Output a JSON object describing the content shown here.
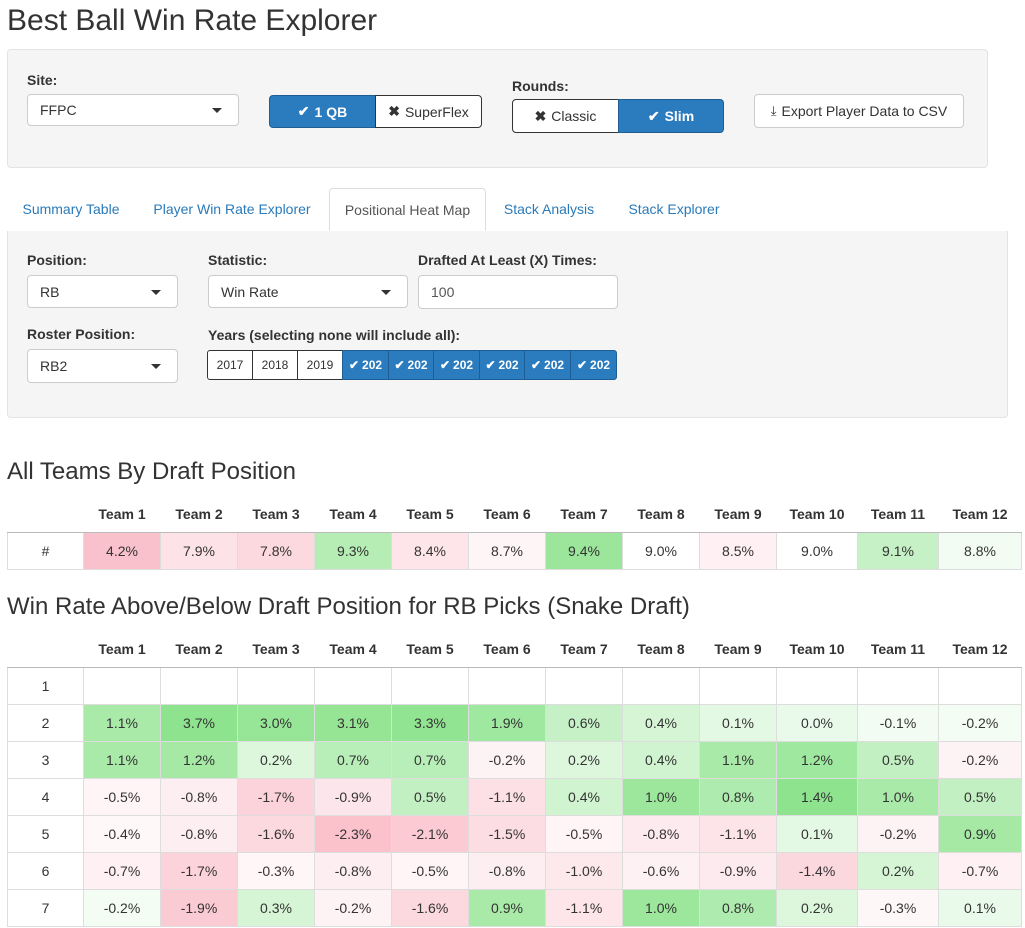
{
  "app": {
    "title": "Best Ball Win Rate Explorer"
  },
  "controls": {
    "site_label": "Site:",
    "site_value": "FFPC",
    "qb_1_label": "1 QB",
    "qb_super_label": "SuperFlex",
    "rounds_label": "Rounds:",
    "rounds_classic_label": "Classic",
    "rounds_slim_label": "Slim",
    "export_label": "Export Player Data to CSV"
  },
  "tabs": [
    "Summary Table",
    "Player Win Rate Explorer",
    "Positional Heat Map",
    "Stack Analysis",
    "Stack Explorer"
  ],
  "active_tab": "Positional Heat Map",
  "filters": {
    "position_label": "Position:",
    "position_value": "RB",
    "statistic_label": "Statistic:",
    "statistic_value": "Win Rate",
    "drafted_label": "Drafted At Least (X) Times:",
    "drafted_value": "100",
    "roster_label": "Roster Position:",
    "roster_value": "RB2",
    "years_label": "Years (selecting none will include all):",
    "years": [
      {
        "label": "2017",
        "selected": false
      },
      {
        "label": "2018",
        "selected": false
      },
      {
        "label": "2019",
        "selected": false
      },
      {
        "label": "202",
        "selected": true
      },
      {
        "label": "202",
        "selected": true
      },
      {
        "label": "202",
        "selected": true
      },
      {
        "label": "202",
        "selected": true
      },
      {
        "label": "202",
        "selected": true
      },
      {
        "label": "202",
        "selected": true
      }
    ]
  },
  "teams_table": {
    "title": "All Teams By Draft Position",
    "headers": [
      "",
      "Team 1",
      "Team 2",
      "Team 3",
      "Team 4",
      "Team 5",
      "Team 6",
      "Team 7",
      "Team 8",
      "Team 9",
      "Team 10",
      "Team 11",
      "Team 12"
    ],
    "row_label": "#",
    "values": [
      4.2,
      7.9,
      7.8,
      9.3,
      8.4,
      8.7,
      9.4,
      9.0,
      8.5,
      9.0,
      9.1,
      8.8
    ],
    "colors": [
      "#f9c1cb",
      "#fde3e8",
      "#fcd9df",
      "#b5edb5",
      "#fde5ea",
      "#fef5f7",
      "#9ce69c",
      "#ffffff",
      "#fff0f3",
      "#ffffff",
      "#c6f1c6",
      "#f3fcf3"
    ]
  },
  "snake_table": {
    "title": "Win Rate Above/Below Draft Position for RB Picks (Snake Draft)",
    "headers": [
      "",
      "Team 1",
      "Team 2",
      "Team 3",
      "Team 4",
      "Team 5",
      "Team 6",
      "Team 7",
      "Team 8",
      "Team 9",
      "Team 10",
      "Team 11",
      "Team 12"
    ],
    "rows": [
      {
        "label": "1",
        "values": [
          "",
          "",
          "",
          "",
          "",
          "",
          "",
          "",
          "",
          "",
          "",
          ""
        ]
      },
      {
        "label": "2",
        "values": [
          "1.1%",
          "3.7%",
          "3.0%",
          "3.1%",
          "3.3%",
          "1.9%",
          "0.6%",
          "0.4%",
          "0.1%",
          "0.0%",
          "-0.1%",
          "-0.2%"
        ]
      },
      {
        "label": "3",
        "values": [
          "1.1%",
          "1.2%",
          "0.2%",
          "0.7%",
          "0.7%",
          "-0.2%",
          "0.2%",
          "0.4%",
          "1.1%",
          "1.2%",
          "0.5%",
          "-0.2%"
        ]
      },
      {
        "label": "4",
        "values": [
          "-0.5%",
          "-0.8%",
          "-1.7%",
          "-0.9%",
          "0.5%",
          "-1.1%",
          "0.4%",
          "1.0%",
          "0.8%",
          "1.4%",
          "1.0%",
          "0.5%"
        ]
      },
      {
        "label": "5",
        "values": [
          "-0.4%",
          "-0.8%",
          "-1.6%",
          "-2.3%",
          "-2.1%",
          "-1.5%",
          "-0.5%",
          "-0.8%",
          "-1.1%",
          "0.1%",
          "-0.2%",
          "0.9%"
        ]
      },
      {
        "label": "6",
        "values": [
          "-0.7%",
          "-1.7%",
          "-0.3%",
          "-0.8%",
          "-0.5%",
          "-0.8%",
          "-1.0%",
          "-0.6%",
          "-0.9%",
          "-1.4%",
          "0.2%",
          "-0.7%"
        ]
      },
      {
        "label": "7",
        "values": [
          "-0.2%",
          "-1.9%",
          "0.3%",
          "-0.2%",
          "-1.6%",
          "0.9%",
          "-1.1%",
          "1.0%",
          "0.8%",
          "0.2%",
          "-0.3%",
          "0.1%"
        ]
      }
    ],
    "colors": [
      [
        "#ffffff",
        "#ffffff",
        "#ffffff",
        "#ffffff",
        "#ffffff",
        "#ffffff",
        "#ffffff",
        "#ffffff",
        "#ffffff",
        "#ffffff",
        "#ffffff",
        "#ffffff"
      ],
      [
        "#a9eaa9",
        "#8ee38e",
        "#97e697",
        "#95e595",
        "#91e491",
        "#9fe89f",
        "#c6f1c6",
        "#d5f5d5",
        "#e4f9e4",
        "#eafaea",
        "#f3fcf3",
        "#f4fdf4"
      ],
      [
        "#a9eaa9",
        "#a5e9a5",
        "#dcf7dc",
        "#b8eeb8",
        "#b8eeb8",
        "#fdf2f4",
        "#dcf7dc",
        "#cff4cf",
        "#a9eaa9",
        "#9fe89f",
        "#c2f0c2",
        "#fdf2f4"
      ],
      [
        "#fff5f7",
        "#fdeef1",
        "#fcd3db",
        "#fde6eb",
        "#c3f0c3",
        "#fde0e6",
        "#cff4cf",
        "#9de79d",
        "#aeebae",
        "#8ee38e",
        "#a9eaa9",
        "#c2f0c2"
      ],
      [
        "#fff8f9",
        "#fdeef1",
        "#fcd8df",
        "#fbc2cc",
        "#fbcad3",
        "#fcdde3",
        "#fff4f6",
        "#fdeaee",
        "#fde4e9",
        "#e4f9e4",
        "#fdf2f4",
        "#a5e9a5"
      ],
      [
        "#fef0f3",
        "#fcd3db",
        "#fff6f8",
        "#fdeef1",
        "#fff4f6",
        "#fdeef1",
        "#fde8ec",
        "#fef1f4",
        "#fdeaee",
        "#fbd7de",
        "#d5f5d5",
        "#fef0f3"
      ],
      [
        "#f4fdf4",
        "#fbcbd4",
        "#d5f5d5",
        "#fdf2f4",
        "#fcd8df",
        "#a9eaa9",
        "#fde5ea",
        "#9de79d",
        "#aeebae",
        "#dcf7dc",
        "#fef7f8",
        "#e9faea"
      ]
    ]
  }
}
